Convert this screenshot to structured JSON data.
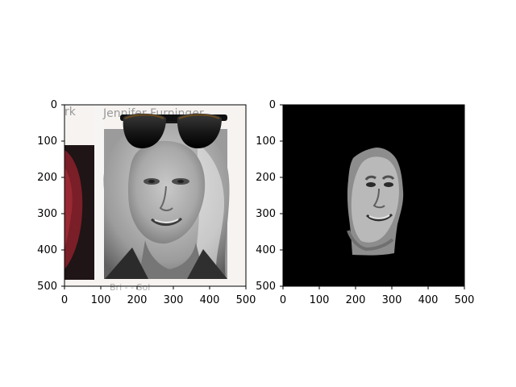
{
  "figure": {
    "panels": [
      {
        "caption_top": "Jennifer Furninger",
        "caption_left": "rk",
        "caption_bottom": "Bri - - Sol",
        "overlay": "sunglasses",
        "x_ticks": [
          "0",
          "100",
          "200",
          "300",
          "400",
          "500"
        ],
        "y_ticks": [
          "0",
          "100",
          "200",
          "300",
          "400",
          "500"
        ]
      },
      {
        "background": "#000000",
        "x_ticks": [
          "0",
          "100",
          "200",
          "300",
          "400",
          "500"
        ],
        "y_ticks": [
          "0",
          "100",
          "200",
          "300",
          "400",
          "500"
        ]
      }
    ]
  }
}
